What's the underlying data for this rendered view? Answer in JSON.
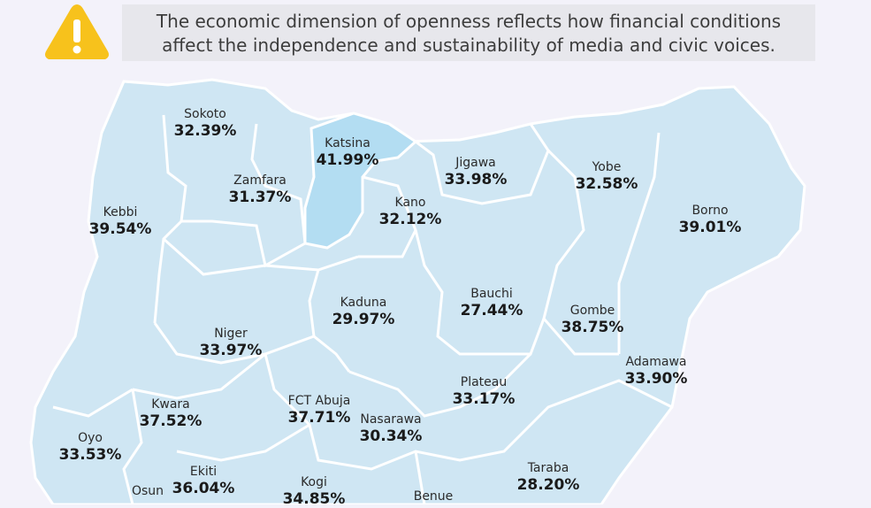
{
  "note": {
    "text": "The economic dimension of openness reflects how financial conditions affect the independence and sustainability of media and civic voices."
  },
  "icons": {
    "warning": "warning-triangle-icon"
  },
  "colors": {
    "warning": "#f7c21c",
    "region": "#cfe6f3",
    "highlight": "#b3ddf2",
    "border": "#ffffff"
  },
  "states": [
    {
      "name": "Sokoto",
      "value": "32.39%"
    },
    {
      "name": "Katsina",
      "value": "41.99%"
    },
    {
      "name": "Jigawa",
      "value": "33.98%"
    },
    {
      "name": "Yobe",
      "value": "32.58%"
    },
    {
      "name": "Zamfara",
      "value": "31.37%"
    },
    {
      "name": "Kano",
      "value": "32.12%"
    },
    {
      "name": "Kebbi",
      "value": "39.54%"
    },
    {
      "name": "Borno",
      "value": "39.01%"
    },
    {
      "name": "Bauchi",
      "value": "27.44%"
    },
    {
      "name": "Kaduna",
      "value": "29.97%"
    },
    {
      "name": "Gombe",
      "value": "38.75%"
    },
    {
      "name": "Niger",
      "value": "33.97%"
    },
    {
      "name": "Adamawa",
      "value": "33.90%"
    },
    {
      "name": "Plateau",
      "value": "33.17%"
    },
    {
      "name": "FCT Abuja",
      "value": "37.71%"
    },
    {
      "name": "Kwara",
      "value": "37.52%"
    },
    {
      "name": "Nasarawa",
      "value": "30.34%"
    },
    {
      "name": "Oyo",
      "value": "33.53%"
    },
    {
      "name": "Ekiti",
      "value": "36.04%"
    },
    {
      "name": "Taraba",
      "value": "28.20%"
    },
    {
      "name": "Kogi",
      "value": "34.85%"
    },
    {
      "name": "Osun",
      "value": ""
    },
    {
      "name": "Benue",
      "value": ""
    }
  ]
}
